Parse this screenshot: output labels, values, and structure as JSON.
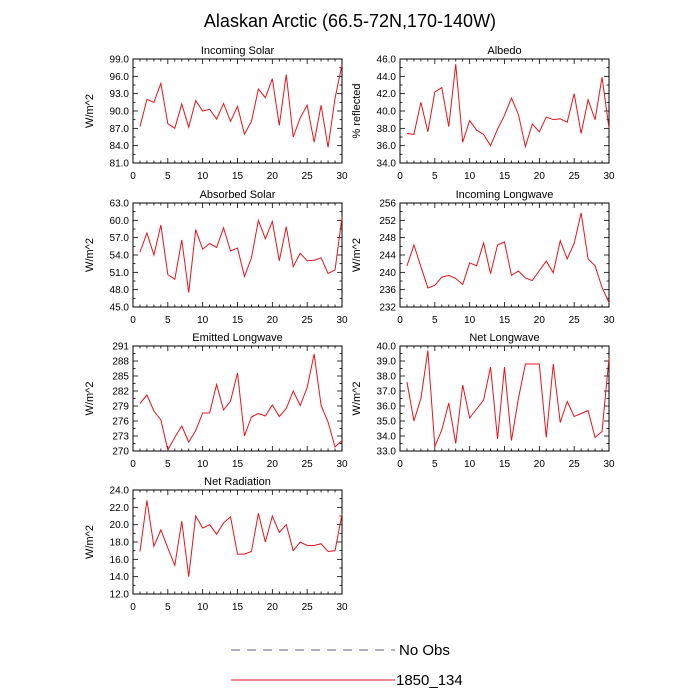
{
  "figure_title": "Alaskan Arctic (66.5-72N,170-140W)",
  "colors": {
    "model": "#e8141c",
    "obs": "#5f5fa6",
    "axis": "#000000",
    "background": "#ffffff"
  },
  "legend": {
    "obs_label": "No Obs",
    "model_label": "1850_134"
  },
  "chart_data": [
    {
      "type": "line",
      "title": "Incoming Solar",
      "ylabel": "W/m^2",
      "xlabel": "",
      "xlim": [
        0,
        30
      ],
      "ylim": [
        81.0,
        99.0
      ],
      "xticks": [
        0,
        5,
        10,
        15,
        20,
        25,
        30
      ],
      "xtick_labels": [
        "0",
        "5",
        "10",
        "15",
        "20",
        "25",
        "30"
      ],
      "yticks": [
        81.0,
        84.0,
        87.0,
        90.0,
        93.0,
        96.0,
        99.0
      ],
      "ytick_labels": [
        "81.0",
        "84.0",
        "87.0",
        "90.0",
        "93.0",
        "96.0",
        "99.0"
      ],
      "x": [
        1,
        2,
        3,
        4,
        5,
        6,
        7,
        8,
        9,
        10,
        11,
        12,
        13,
        14,
        15,
        16,
        17,
        18,
        19,
        20,
        21,
        22,
        23,
        24,
        25,
        26,
        27,
        28,
        29,
        30
      ],
      "series": [
        {
          "name": "1850_134",
          "values": [
            87.3,
            92.0,
            91.5,
            94.8,
            87.8,
            87.0,
            91.2,
            87.2,
            91.8,
            90.0,
            90.3,
            88.6,
            91.3,
            88.2,
            90.8,
            86.0,
            88.2,
            93.8,
            92.3,
            95.6,
            87.5,
            96.3,
            85.5,
            88.8,
            91.0,
            84.6,
            91.0,
            83.7,
            92.2,
            98.0
          ]
        }
      ]
    },
    {
      "type": "line",
      "title": "Albedo",
      "ylabel": "% reflected",
      "xlabel": "",
      "xlim": [
        0,
        30
      ],
      "ylim": [
        34.0,
        46.0
      ],
      "xticks": [
        0,
        5,
        10,
        15,
        20,
        25,
        30
      ],
      "xtick_labels": [
        "0",
        "5",
        "10",
        "15",
        "20",
        "25",
        "30"
      ],
      "yticks": [
        34.0,
        36.0,
        38.0,
        40.0,
        42.0,
        44.0,
        46.0
      ],
      "ytick_labels": [
        "34.0",
        "36.0",
        "38.0",
        "40.0",
        "42.0",
        "44.0",
        "46.0"
      ],
      "x": [
        1,
        2,
        3,
        4,
        5,
        6,
        7,
        8,
        9,
        10,
        11,
        12,
        13,
        14,
        15,
        16,
        17,
        18,
        19,
        20,
        21,
        22,
        23,
        24,
        25,
        26,
        27,
        28,
        29,
        30
      ],
      "series": [
        {
          "name": "1850_134",
          "values": [
            37.4,
            37.3,
            41.0,
            37.6,
            42.2,
            42.7,
            38.2,
            45.4,
            36.4,
            38.9,
            37.8,
            37.3,
            36.0,
            37.9,
            39.5,
            41.5,
            39.6,
            35.9,
            38.5,
            37.6,
            39.3,
            39.0,
            39.1,
            38.7,
            42.0,
            37.4,
            41.3,
            39.0,
            43.9,
            38.0
          ]
        }
      ]
    },
    {
      "type": "line",
      "title": "Absorbed Solar",
      "ylabel": "W/m^2",
      "xlabel": "",
      "xlim": [
        0,
        30
      ],
      "ylim": [
        45.0,
        63.0
      ],
      "xticks": [
        0,
        5,
        10,
        15,
        20,
        25,
        30
      ],
      "xtick_labels": [
        "0",
        "5",
        "10",
        "15",
        "20",
        "25",
        "30"
      ],
      "yticks": [
        45.0,
        48.0,
        51.0,
        54.0,
        57.0,
        60.0,
        63.0
      ],
      "ytick_labels": [
        "45.0",
        "48.0",
        "51.0",
        "54.0",
        "57.0",
        "60.0",
        "63.0"
      ],
      "x": [
        1,
        2,
        3,
        4,
        5,
        6,
        7,
        8,
        9,
        10,
        11,
        12,
        13,
        14,
        15,
        16,
        17,
        18,
        19,
        20,
        21,
        22,
        23,
        24,
        25,
        26,
        27,
        28,
        29,
        30
      ],
      "series": [
        {
          "name": "1850_134",
          "values": [
            54.5,
            57.8,
            54.0,
            59.2,
            50.6,
            49.8,
            56.6,
            47.5,
            58.4,
            55.0,
            56.0,
            55.3,
            58.7,
            54.7,
            55.2,
            50.3,
            53.5,
            60.0,
            56.8,
            59.8,
            53.0,
            58.9,
            52.0,
            54.3,
            53.0,
            53.1,
            53.5,
            50.8,
            51.4,
            60.5
          ]
        }
      ]
    },
    {
      "type": "line",
      "title": "Incoming Longwave",
      "ylabel": "W/m^2",
      "xlabel": "",
      "xlim": [
        0,
        30
      ],
      "ylim": [
        232,
        256
      ],
      "xticks": [
        0,
        5,
        10,
        15,
        20,
        25,
        30
      ],
      "xtick_labels": [
        "0",
        "5",
        "10",
        "15",
        "20",
        "25",
        "30"
      ],
      "yticks": [
        232,
        236,
        240,
        244,
        248,
        252,
        256
      ],
      "ytick_labels": [
        "232",
        "236",
        "240",
        "244",
        "248",
        "252",
        "256"
      ],
      "x": [
        1,
        2,
        3,
        4,
        5,
        6,
        7,
        8,
        9,
        10,
        11,
        12,
        13,
        14,
        15,
        16,
        17,
        18,
        19,
        20,
        21,
        22,
        23,
        24,
        25,
        26,
        27,
        28,
        29,
        30
      ],
      "series": [
        {
          "name": "1850_134",
          "values": [
            241.5,
            246.3,
            241.3,
            236.4,
            237.0,
            238.9,
            239.3,
            238.6,
            237.2,
            242.2,
            241.5,
            246.8,
            239.7,
            246.3,
            247.0,
            239.3,
            240.3,
            238.7,
            238.1,
            240.4,
            242.6,
            239.9,
            247.3,
            243.1,
            246.7,
            253.7,
            243.1,
            241.5,
            236.5,
            233.0
          ]
        }
      ]
    },
    {
      "type": "line",
      "title": "Emitted Longwave",
      "ylabel": "W/m^2",
      "xlabel": "",
      "xlim": [
        0,
        30
      ],
      "ylim": [
        270,
        291
      ],
      "xticks": [
        0,
        5,
        10,
        15,
        20,
        25,
        30
      ],
      "xtick_labels": [
        "0",
        "5",
        "10",
        "15",
        "20",
        "25",
        "30"
      ],
      "yticks": [
        270,
        273,
        276,
        279,
        282,
        285,
        288,
        291
      ],
      "ytick_labels": [
        "270",
        "273",
        "276",
        "279",
        "282",
        "285",
        "288",
        "291"
      ],
      "x": [
        1,
        2,
        3,
        4,
        5,
        6,
        7,
        8,
        9,
        10,
        11,
        12,
        13,
        14,
        15,
        16,
        17,
        18,
        19,
        20,
        21,
        22,
        23,
        24,
        25,
        26,
        27,
        28,
        29,
        30
      ],
      "series": [
        {
          "name": "1850_134",
          "values": [
            279.5,
            281.2,
            278.0,
            276.2,
            270.2,
            272.7,
            275.0,
            271.8,
            274.1,
            277.6,
            277.6,
            283.3,
            278.2,
            280.0,
            285.6,
            273.0,
            276.8,
            277.5,
            277.0,
            279.2,
            276.9,
            278.5,
            282.0,
            279.1,
            282.7,
            289.4,
            279.1,
            275.8,
            270.8,
            272.1
          ]
        }
      ]
    },
    {
      "type": "line",
      "title": "Net Longwave",
      "ylabel": "W/m^2",
      "xlabel": "",
      "xlim": [
        0,
        30
      ],
      "ylim": [
        33.0,
        40.0
      ],
      "xticks": [
        0,
        5,
        10,
        15,
        20,
        25,
        30
      ],
      "xtick_labels": [
        "0",
        "5",
        "10",
        "15",
        "20",
        "25",
        "30"
      ],
      "yticks": [
        33.0,
        34.0,
        35.0,
        36.0,
        37.0,
        38.0,
        39.0,
        40.0
      ],
      "ytick_labels": [
        "33.0",
        "34.0",
        "35.0",
        "36.0",
        "37.0",
        "38.0",
        "39.0",
        "40.0"
      ],
      "x": [
        1,
        2,
        3,
        4,
        5,
        6,
        7,
        8,
        9,
        10,
        11,
        12,
        13,
        14,
        15,
        16,
        17,
        18,
        19,
        20,
        21,
        22,
        23,
        24,
        25,
        26,
        27,
        28,
        29,
        30
      ],
      "series": [
        {
          "name": "1850_134",
          "values": [
            37.6,
            35.0,
            36.5,
            39.7,
            33.3,
            34.4,
            36.2,
            33.5,
            37.4,
            35.2,
            35.8,
            36.4,
            38.6,
            33.8,
            38.6,
            33.7,
            36.5,
            38.8,
            38.8,
            38.8,
            33.9,
            38.8,
            34.9,
            36.3,
            35.3,
            35.5,
            35.7,
            33.9,
            34.3,
            39.2
          ]
        }
      ]
    },
    {
      "type": "line",
      "title": "Net Radiation",
      "ylabel": "W/m^2",
      "xlabel": "",
      "xlim": [
        0,
        30
      ],
      "ylim": [
        12.0,
        24.0
      ],
      "xticks": [
        0,
        5,
        10,
        15,
        20,
        25,
        30
      ],
      "xtick_labels": [
        "0",
        "5",
        "10",
        "15",
        "20",
        "25",
        "30"
      ],
      "yticks": [
        12.0,
        14.0,
        16.0,
        18.0,
        20.0,
        22.0,
        24.0
      ],
      "ytick_labels": [
        "12.0",
        "14.0",
        "16.0",
        "18.0",
        "20.0",
        "22.0",
        "24.0"
      ],
      "x": [
        1,
        2,
        3,
        4,
        5,
        6,
        7,
        8,
        9,
        10,
        11,
        12,
        13,
        14,
        15,
        16,
        17,
        18,
        19,
        20,
        21,
        22,
        23,
        24,
        25,
        26,
        27,
        28,
        29,
        30
      ],
      "series": [
        {
          "name": "1850_134",
          "values": [
            16.9,
            22.8,
            17.5,
            19.4,
            17.3,
            15.3,
            20.4,
            14.0,
            21.0,
            19.6,
            20.0,
            18.9,
            20.2,
            20.9,
            16.6,
            16.6,
            16.9,
            21.3,
            18.0,
            21.0,
            19.1,
            20.0,
            17.0,
            18.0,
            17.6,
            17.6,
            17.8,
            16.9,
            17.0,
            21.2
          ]
        }
      ]
    }
  ]
}
